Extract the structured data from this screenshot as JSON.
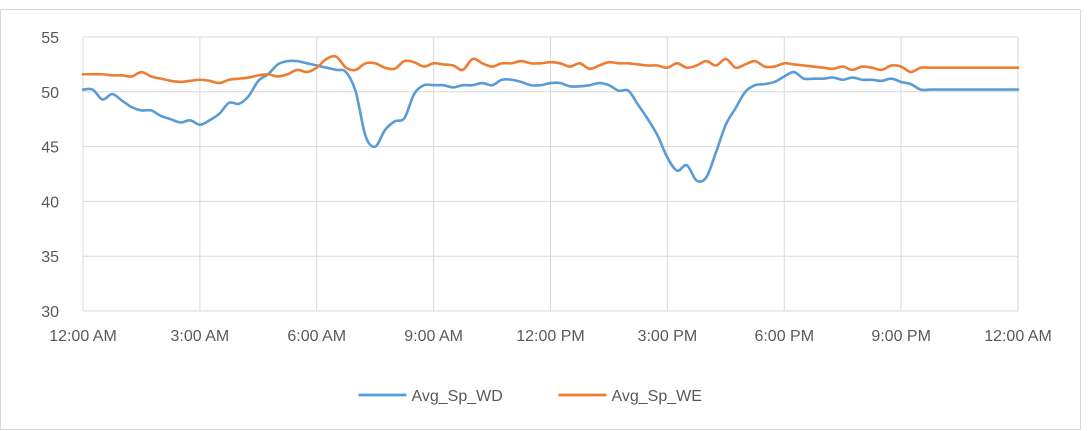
{
  "chart_data": {
    "type": "line",
    "title": "",
    "xlabel": "",
    "ylabel": "",
    "ylim": [
      30,
      55
    ],
    "xlim": [
      0,
      24
    ],
    "y_ticks": [
      "30",
      "35",
      "40",
      "45",
      "50",
      "55"
    ],
    "x_tick_labels": [
      "12:00 AM",
      "3:00 AM",
      "6:00 AM",
      "9:00 AM",
      "12:00 PM",
      "3:00 PM",
      "6:00 PM",
      "9:00 PM",
      "12:00 AM"
    ],
    "grid": true,
    "legend": "bottom",
    "series": [
      {
        "name": "Avg_Sp_WD",
        "color": "#5b9bd5",
        "x": [
          0,
          0.25,
          0.5,
          0.75,
          1,
          1.25,
          1.5,
          1.75,
          2,
          2.25,
          2.5,
          2.75,
          3,
          3.25,
          3.5,
          3.75,
          4,
          4.25,
          4.5,
          4.75,
          5,
          5.25,
          5.5,
          5.75,
          6,
          6.25,
          6.5,
          6.75,
          7,
          7.25,
          7.5,
          7.75,
          8,
          8.25,
          8.5,
          8.75,
          9,
          9.25,
          9.5,
          9.75,
          10,
          10.25,
          10.5,
          10.75,
          11,
          11.25,
          11.5,
          11.75,
          12,
          12.25,
          12.5,
          12.75,
          13,
          13.25,
          13.5,
          13.75,
          14,
          14.25,
          14.5,
          14.75,
          15,
          15.25,
          15.5,
          15.75,
          16,
          16.25,
          16.5,
          16.75,
          17,
          17.25,
          17.5,
          17.75,
          18,
          18.25,
          18.5,
          18.75,
          19,
          19.25,
          19.5,
          19.75,
          20,
          20.25,
          20.5,
          20.75,
          21,
          21.25,
          21.5,
          21.75,
          22,
          22.25,
          22.5,
          22.75,
          23,
          23.25,
          23.5,
          23.75,
          24
        ],
        "values": [
          50.2,
          50.2,
          49.3,
          49.8,
          49.2,
          48.6,
          48.3,
          48.3,
          47.8,
          47.5,
          47.2,
          47.4,
          47.0,
          47.4,
          48.0,
          49.0,
          48.9,
          49.6,
          51.0,
          51.6,
          52.5,
          52.8,
          52.8,
          52.6,
          52.4,
          52.2,
          52.0,
          51.8,
          50.0,
          46.0,
          45.0,
          46.5,
          47.3,
          47.6,
          49.8,
          50.6,
          50.6,
          50.6,
          50.4,
          50.6,
          50.6,
          50.8,
          50.6,
          51.1,
          51.1,
          50.9,
          50.6,
          50.6,
          50.8,
          50.8,
          50.5,
          50.5,
          50.6,
          50.8,
          50.6,
          50.1,
          50.1,
          48.8,
          47.5,
          46.0,
          44.0,
          42.8,
          43.3,
          41.9,
          42.2,
          44.5,
          47.0,
          48.5,
          50.0,
          50.6,
          50.7,
          50.9,
          51.4,
          51.8,
          51.2,
          51.2,
          51.2,
          51.3,
          51.1,
          51.3,
          51.1,
          51.1,
          51.0,
          51.2,
          50.9,
          50.7,
          50.2,
          50.2,
          50.2,
          50.2,
          50.2,
          50.2,
          50.2,
          50.2,
          50.2,
          50.2,
          50.2
        ]
      },
      {
        "name": "Avg_Sp_WE",
        "color": "#ed7d31",
        "x": [
          0,
          0.25,
          0.5,
          0.75,
          1,
          1.25,
          1.5,
          1.75,
          2,
          2.25,
          2.5,
          2.75,
          3,
          3.25,
          3.5,
          3.75,
          4,
          4.25,
          4.5,
          4.75,
          5,
          5.25,
          5.5,
          5.75,
          6,
          6.25,
          6.5,
          6.75,
          7,
          7.25,
          7.5,
          7.75,
          8,
          8.25,
          8.5,
          8.75,
          9,
          9.25,
          9.5,
          9.75,
          10,
          10.25,
          10.5,
          10.75,
          11,
          11.25,
          11.5,
          11.75,
          12,
          12.25,
          12.5,
          12.75,
          13,
          13.25,
          13.5,
          13.75,
          14,
          14.25,
          14.5,
          14.75,
          15,
          15.25,
          15.5,
          15.75,
          16,
          16.25,
          16.5,
          16.75,
          17,
          17.25,
          17.5,
          17.75,
          18,
          18.25,
          18.5,
          18.75,
          19,
          19.25,
          19.5,
          19.75,
          20,
          20.25,
          20.5,
          20.75,
          21,
          21.25,
          21.5,
          21.75,
          22,
          22.25,
          22.5,
          22.75,
          23,
          23.25,
          23.5,
          23.75,
          24
        ],
        "values": [
          51.6,
          51.6,
          51.6,
          51.5,
          51.5,
          51.4,
          51.8,
          51.4,
          51.2,
          51.0,
          50.9,
          51.0,
          51.1,
          51.0,
          50.8,
          51.1,
          51.2,
          51.3,
          51.5,
          51.6,
          51.4,
          51.6,
          52.0,
          51.8,
          52.2,
          53.0,
          53.2,
          52.2,
          52.0,
          52.6,
          52.6,
          52.2,
          52.1,
          52.8,
          52.7,
          52.3,
          52.6,
          52.5,
          52.4,
          52.0,
          53.0,
          52.6,
          52.3,
          52.6,
          52.6,
          52.8,
          52.6,
          52.6,
          52.7,
          52.6,
          52.3,
          52.6,
          52.1,
          52.4,
          52.7,
          52.6,
          52.6,
          52.5,
          52.4,
          52.4,
          52.2,
          52.6,
          52.2,
          52.4,
          52.8,
          52.4,
          53.0,
          52.2,
          52.5,
          52.8,
          52.3,
          52.3,
          52.6,
          52.5,
          52.4,
          52.3,
          52.2,
          52.1,
          52.3,
          52.0,
          52.3,
          52.2,
          52.0,
          52.4,
          52.3,
          51.8,
          52.2,
          52.2,
          52.2,
          52.2,
          52.2,
          52.2,
          52.2,
          52.2,
          52.2,
          52.2,
          52.2
        ]
      }
    ]
  }
}
